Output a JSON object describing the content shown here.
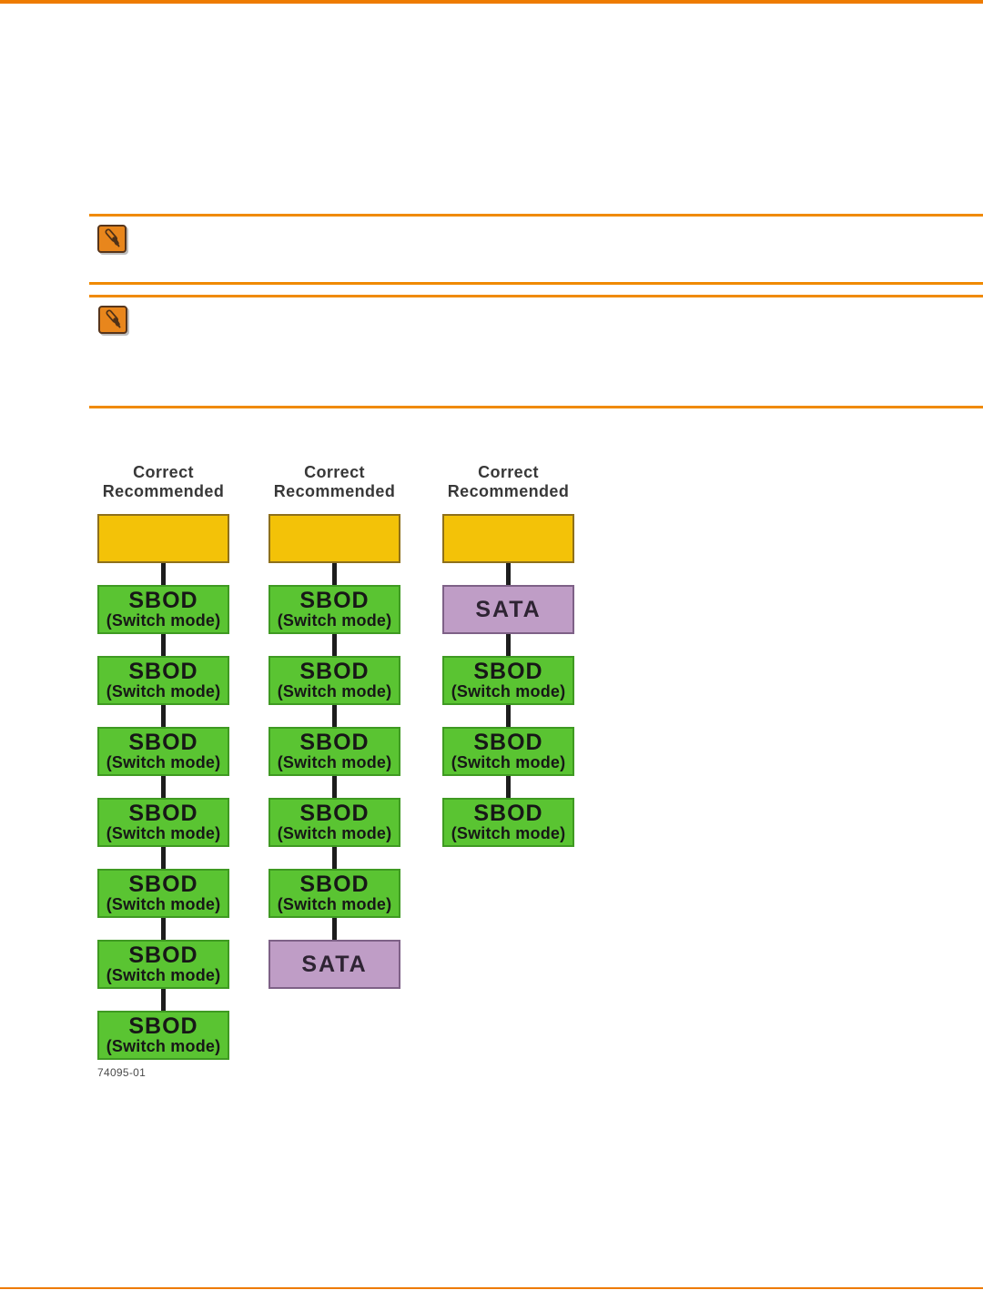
{
  "page": {
    "background": "#FFFFFF",
    "top_accent_color": "#EE7B00",
    "bottom_rule_color": "#EE7B00",
    "note_rule_color": "#F08A00"
  },
  "notes": [
    {
      "icon": "pencil-note-icon",
      "icon_fill": "#E8861C",
      "icon_border": "#57351B"
    },
    {
      "icon": "pencil-note-icon",
      "icon_fill": "#E8861C",
      "icon_border": "#57351B"
    }
  ],
  "figure": {
    "column_header_lines": [
      "Correct",
      "Recommended"
    ],
    "header_text_color": "#383838",
    "connector_color": "#1D1D1D",
    "node_types": {
      "head": {
        "label_lines": [],
        "fill": "#F3C208",
        "border": "#8E701B",
        "text_color": "#1A1A1A"
      },
      "sbod": {
        "label_lines": [
          "SBOD",
          "(Switch mode)"
        ],
        "fill": "#5AC432",
        "border": "#3F9A22",
        "text_color": "#171717"
      },
      "sata": {
        "label_lines": [
          "SATA"
        ],
        "fill": "#BF9DC6",
        "border": "#7E6187",
        "text_color": "#2E2433"
      }
    },
    "columns": [
      {
        "name": "column-1",
        "caption": "74095-01",
        "nodes": [
          "head",
          "sbod",
          "sbod",
          "sbod",
          "sbod",
          "sbod",
          "sbod",
          "sbod"
        ]
      },
      {
        "name": "column-2",
        "nodes": [
          "head",
          "sbod",
          "sbod",
          "sbod",
          "sbod",
          "sbod",
          "sata"
        ]
      },
      {
        "name": "column-3",
        "nodes": [
          "head",
          "sata",
          "sbod",
          "sbod",
          "sbod"
        ]
      }
    ]
  }
}
